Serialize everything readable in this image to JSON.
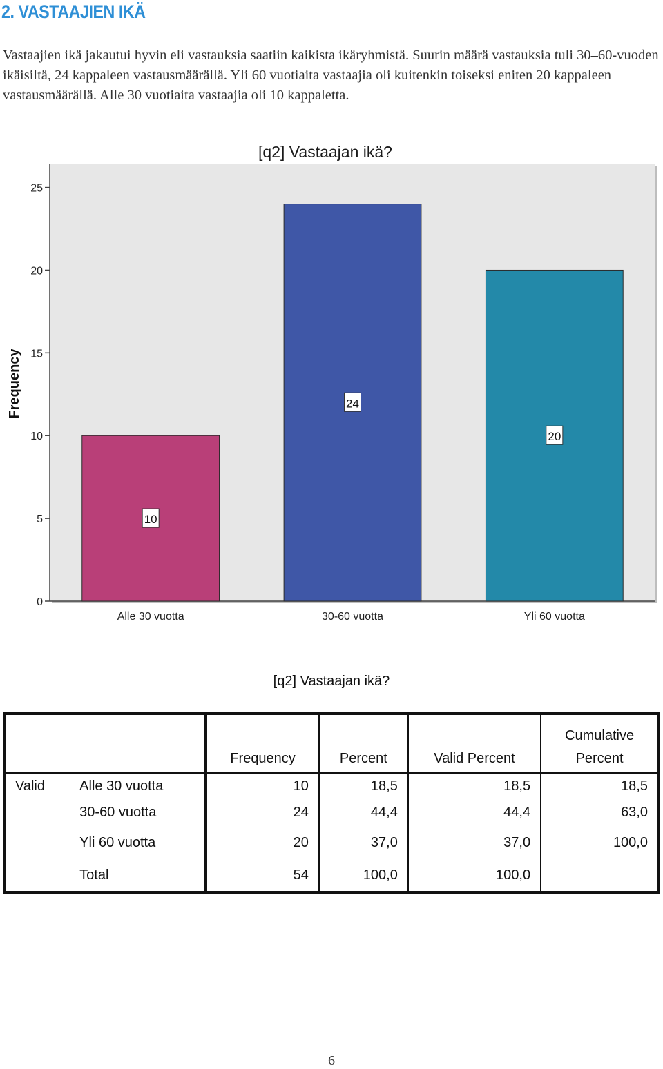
{
  "heading": "2. VASTAAJIEN IKÄ",
  "intro": "Vastaajien ikä jakautui hyvin eli vastauksia saatiin kaikista ikäryhmistä. Suurin määrä vastauksia tuli 30–60-vuoden ikäisiltä, 24 kappaleen vastausmäärällä. Yli 60 vuotiaita vastaajia oli kuitenkin toiseksi eniten 20 kappaleen vastausmäärällä. Alle 30 vuotiaita vastaajia oli 10 kappaletta.",
  "chart_data": {
    "type": "bar",
    "title": "[q2] Vastaajan ikä?",
    "xlabel": "",
    "ylabel": "Frequency",
    "categories": [
      "Alle 30 vuotta",
      "30-60 vuotta",
      "Yli 60 vuotta"
    ],
    "values": [
      10,
      24,
      20
    ],
    "data_labels": [
      "10",
      "24",
      "20"
    ],
    "colors": [
      "#b93f78",
      "#3f57a7",
      "#2389a9"
    ],
    "yticks": [
      "0",
      "5",
      "10",
      "15",
      "20",
      "25"
    ],
    "ylim": [
      0,
      26.4
    ],
    "plot_background": "#e7e7e7",
    "grid": false,
    "legend": "none"
  },
  "table": {
    "title": "[q2] Vastaajan ikä?",
    "header_line1": [
      "",
      "",
      "",
      "",
      "Cumulative"
    ],
    "header_line2": [
      "Frequency",
      "Percent",
      "Valid Percent",
      "Percent"
    ],
    "group_label": "Valid",
    "rows": [
      {
        "label": "Alle 30 vuotta",
        "frequency": "10",
        "percent": "18,5",
        "valid_percent": "18,5",
        "cumulative": "18,5"
      },
      {
        "label": "30-60 vuotta",
        "frequency": "24",
        "percent": "44,4",
        "valid_percent": "44,4",
        "cumulative": "63,0"
      },
      {
        "label": "Yli 60 vuotta",
        "frequency": "20",
        "percent": "37,0",
        "valid_percent": "37,0",
        "cumulative": "100,0"
      },
      {
        "label": "Total",
        "frequency": "54",
        "percent": "100,0",
        "valid_percent": "100,0",
        "cumulative": ""
      }
    ]
  },
  "page_number": "6"
}
